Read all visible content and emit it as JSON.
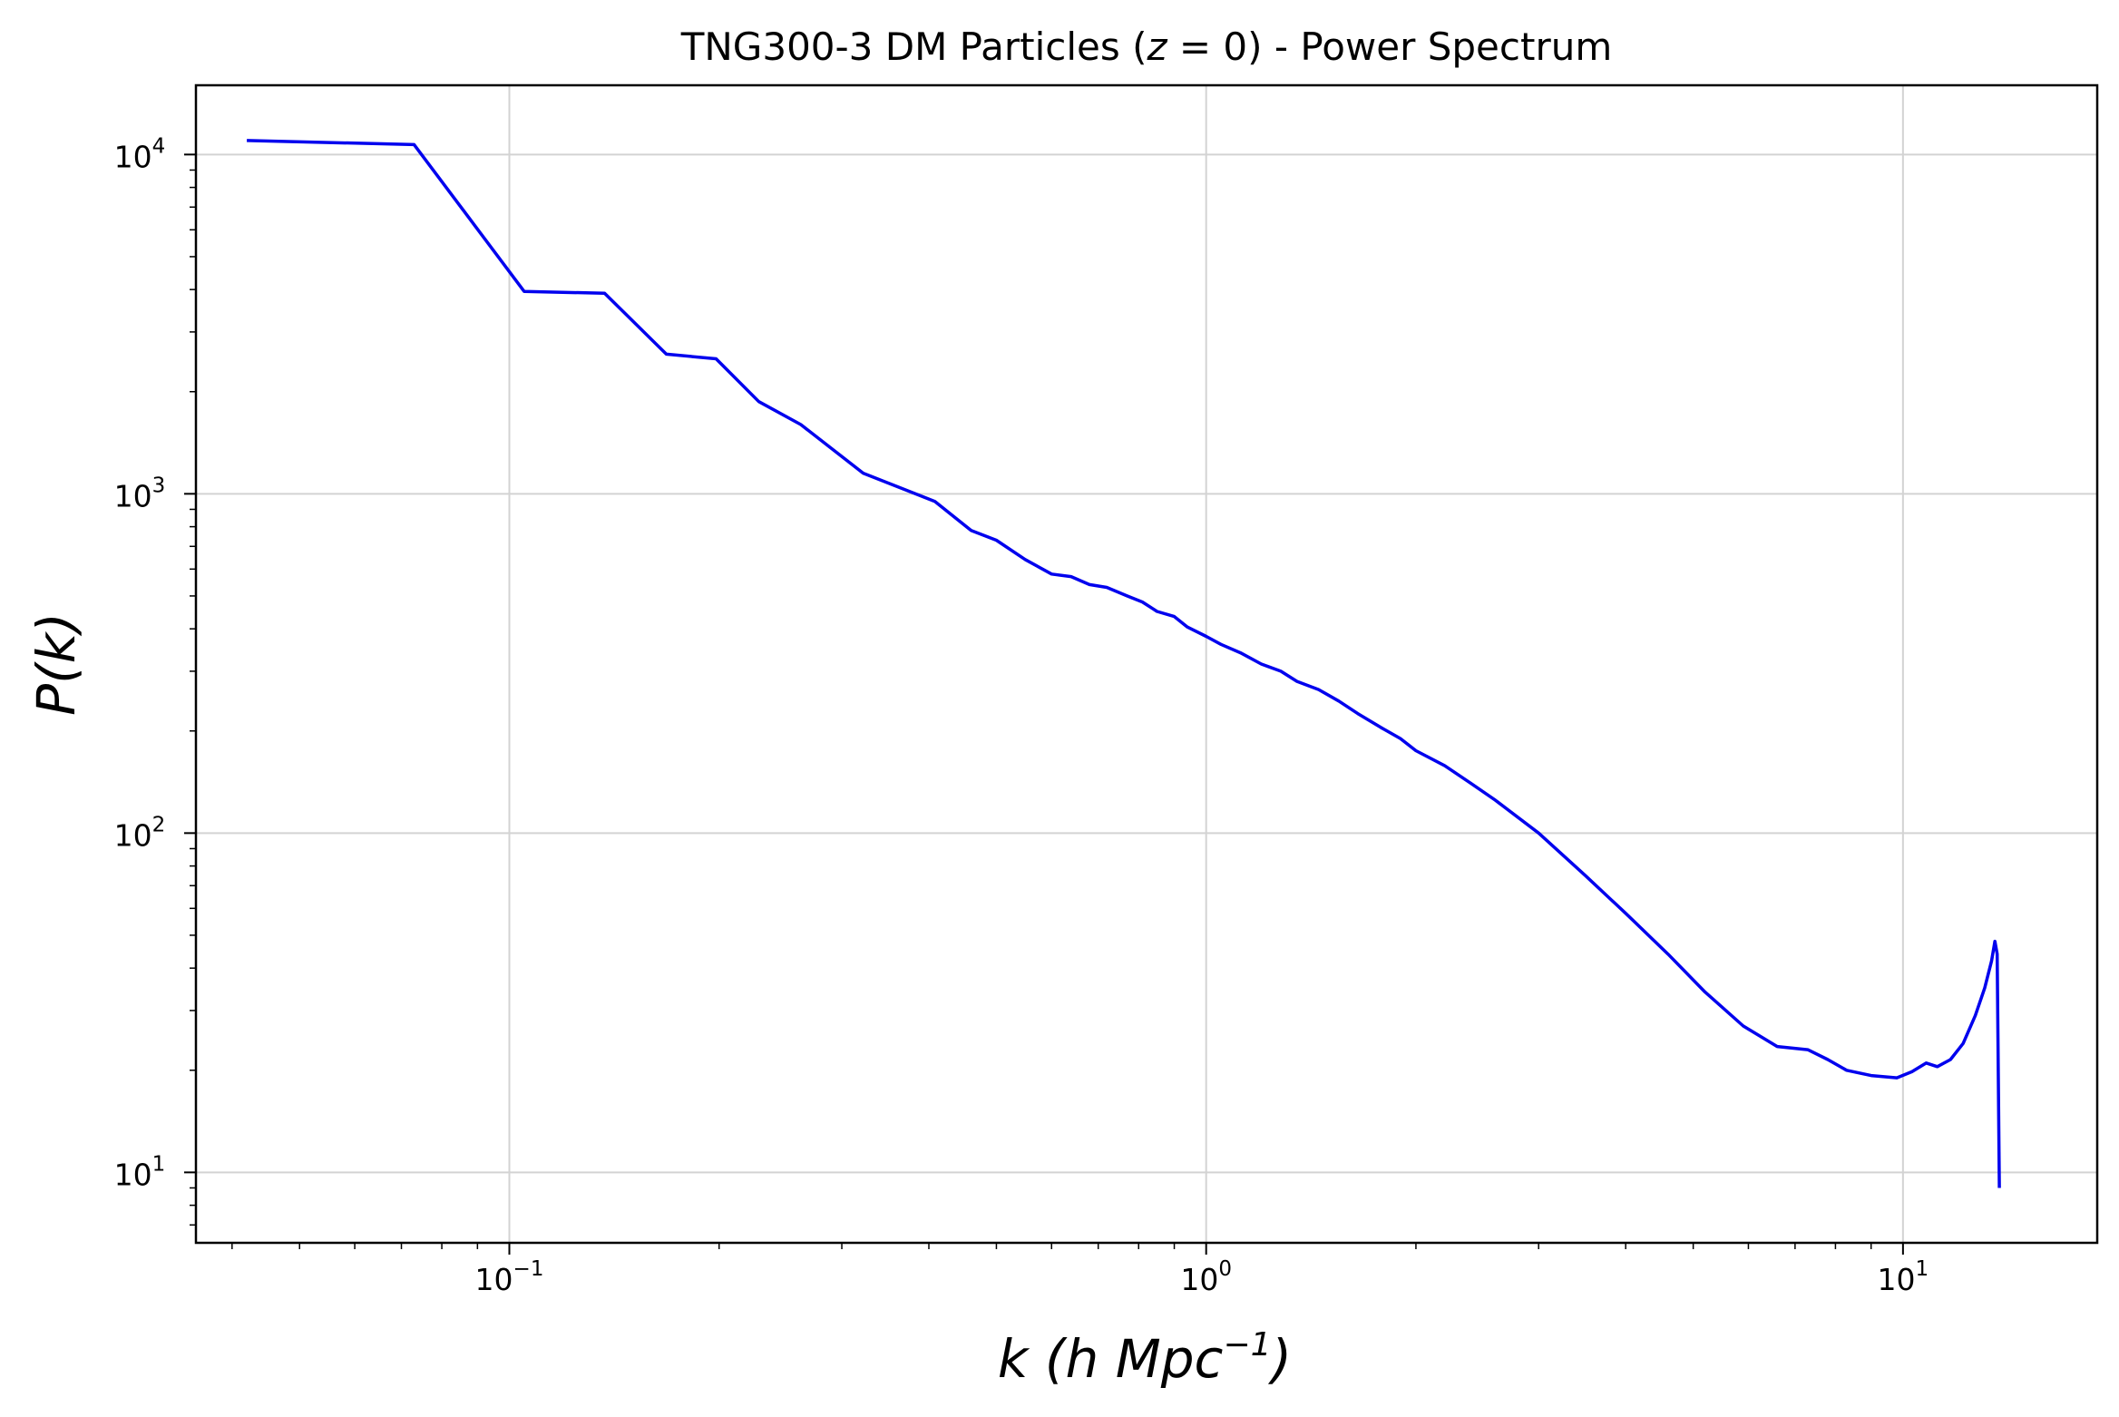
{
  "chart_data": {
    "type": "line",
    "title": "TNG300-3 DM Particles (z = 0) - Power Spectrum",
    "title_parts": {
      "prefix": "TNG300-3 DM Particles (",
      "var": "z",
      "eq": " = 0",
      "suffix": ") - Power Spectrum"
    },
    "xlabel": "k (h Mpc⁻¹)",
    "xlabel_parts": {
      "var": "k",
      "open": " (",
      "unit": "h Mpc",
      "exp": "−1",
      "close": ")"
    },
    "ylabel": "P(k)",
    "x_scale": "log",
    "y_scale": "log",
    "xlim": [
      0.0355,
      19.0
    ],
    "ylim": [
      6.2,
      16000
    ],
    "grid": true,
    "line_color": "#0000ee",
    "x_ticks": [
      {
        "value": 0.1,
        "base": "10",
        "exp": "−1"
      },
      {
        "value": 1,
        "base": "10",
        "exp": "0"
      },
      {
        "value": 10,
        "base": "10",
        "exp": "1"
      }
    ],
    "y_ticks": [
      {
        "value": 10,
        "base": "10",
        "exp": "1"
      },
      {
        "value": 100,
        "base": "10",
        "exp": "2"
      },
      {
        "value": 1000,
        "base": "10",
        "exp": "3"
      },
      {
        "value": 10000,
        "base": "10",
        "exp": "4"
      }
    ],
    "series": [
      {
        "x": [
          0.042,
          0.073,
          0.105,
          0.137,
          0.168,
          0.198,
          0.228,
          0.262,
          0.322,
          0.408,
          0.46,
          0.5,
          0.55,
          0.6,
          0.64,
          0.68,
          0.72,
          0.77,
          0.81,
          0.85,
          0.9,
          0.94,
          1.0,
          1.05,
          1.12,
          1.2,
          1.28,
          1.35,
          1.45,
          1.55,
          1.65,
          1.78,
          1.9,
          2.0,
          2.2,
          2.4,
          2.6,
          3.0,
          3.5,
          4.0,
          4.6,
          5.2,
          5.9,
          6.6,
          7.3,
          7.8,
          8.3,
          9.0,
          9.8,
          10.3,
          10.8,
          11.2,
          11.7,
          12.2,
          12.7,
          13.1,
          13.4,
          13.55,
          13.65,
          13.75
        ],
        "y": [
          11000,
          10700,
          3950,
          3900,
          2580,
          2500,
          1870,
          1600,
          1150,
          950,
          780,
          730,
          640,
          580,
          570,
          540,
          530,
          500,
          480,
          450,
          435,
          405,
          380,
          360,
          340,
          315,
          300,
          280,
          265,
          245,
          225,
          205,
          190,
          175,
          158,
          140,
          125,
          100,
          75,
          58,
          44,
          34,
          27,
          23.5,
          23,
          21.5,
          20,
          19.3,
          19,
          19.8,
          21,
          20.5,
          21.5,
          24,
          29,
          35,
          42,
          48,
          44,
          9
        ]
      }
    ]
  }
}
